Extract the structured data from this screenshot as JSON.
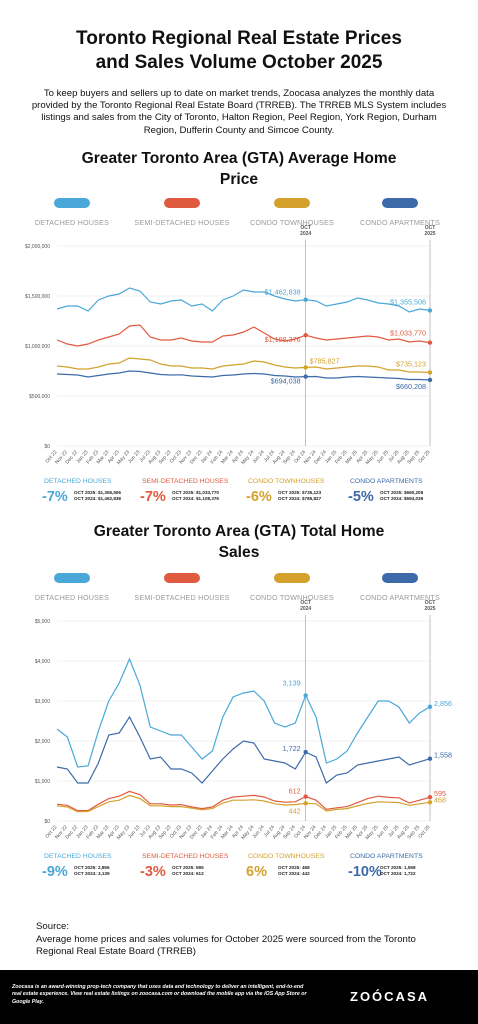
{
  "title_line1": "Toronto Regional Real Estate Prices",
  "title_line2": "and Sales Volume October 2025",
  "intro": "To keep buyers and sellers up to date on market trends, Zoocasa analyzes the monthly data provided by the Toronto Regional Real Estate Board (TRREB). The TRREB MLS System includes listings and sales from the City of Toronto, Halton Region, Peel Region, York Region, Durham Region, Dufferin County and Simcoe County.",
  "colors": {
    "detached": "#4aa8d8",
    "semi": "#e05a3f",
    "town": "#d3a12c",
    "apt": "#3d6aa8"
  },
  "x_labels": [
    "Oct 22",
    "Nov 22",
    "Dec 22",
    "Jan 23",
    "Feb 23",
    "Mar 23",
    "Apr 23",
    "May 23",
    "Jun 23",
    "Jul 23",
    "Aug 23",
    "Sep 23",
    "Oct 23",
    "Nov 23",
    "Dec 23",
    "Jan 24",
    "Feb 24",
    "Mar 24",
    "Apr 24",
    "May 24",
    "Jun 24",
    "Jul 24",
    "Aug 24",
    "Sep 24",
    "Oct 24",
    "Nov 24",
    "Dec 24",
    "Jan 25",
    "Feb 25",
    "Mar 25",
    "Apr 25",
    "May 25",
    "Jun 25",
    "Jul 25",
    "Aug 25",
    "Sep 25",
    "Oct 25"
  ],
  "marker_labels": [
    "OCT\n2024",
    "OCT\n2025"
  ],
  "chart_data": [
    {
      "type": "line",
      "title_line1": "Greater Toronto Area (GTA) Average Home",
      "title_line2": "Price",
      "legend": [
        "DETACHED HOUSES",
        "SEMI-DETACHED HOUSES",
        "CONDO TOWNHOUSES",
        "CONDO APARTMENTS"
      ],
      "y_ticks": [
        "$0",
        "$500,000",
        "$1,000,000",
        "$1,500,000",
        "$2,000,000"
      ],
      "ylim": [
        0,
        2000000
      ],
      "series": [
        {
          "key": "detached",
          "values": [
            1370000,
            1400000,
            1400000,
            1350000,
            1460000,
            1500000,
            1520000,
            1580000,
            1550000,
            1440000,
            1420000,
            1450000,
            1460000,
            1400000,
            1420000,
            1350000,
            1460000,
            1500000,
            1560000,
            1540000,
            1540000,
            1500000,
            1470000,
            1450000,
            1462838,
            1450000,
            1400000,
            1420000,
            1440000,
            1480000,
            1460000,
            1430000,
            1420000,
            1400000,
            1340000,
            1370000,
            1355506
          ]
        },
        {
          "key": "semi",
          "values": [
            1060000,
            1020000,
            1000000,
            1020000,
            1060000,
            1090000,
            1120000,
            1200000,
            1210000,
            1090000,
            1060000,
            1060000,
            1080000,
            1050000,
            1040000,
            1040000,
            1100000,
            1110000,
            1140000,
            1190000,
            1130000,
            1070000,
            1050000,
            1070000,
            1108376,
            1080000,
            1060000,
            1070000,
            1080000,
            1090000,
            1100000,
            1090000,
            1060000,
            1070000,
            1040000,
            1050000,
            1033770
          ]
        },
        {
          "key": "town",
          "values": [
            800000,
            790000,
            770000,
            770000,
            790000,
            820000,
            830000,
            880000,
            870000,
            860000,
            820000,
            800000,
            800000,
            780000,
            780000,
            770000,
            800000,
            810000,
            820000,
            850000,
            840000,
            810000,
            790000,
            780000,
            785827,
            790000,
            770000,
            780000,
            790000,
            800000,
            800000,
            790000,
            760000,
            760000,
            740000,
            740000,
            735123
          ]
        },
        {
          "key": "apt",
          "values": [
            720000,
            715000,
            710000,
            690000,
            705000,
            720000,
            730000,
            750000,
            745000,
            730000,
            715000,
            710000,
            712000,
            700000,
            695000,
            690000,
            705000,
            710000,
            720000,
            725000,
            720000,
            705000,
            700000,
            690000,
            694038,
            695000,
            680000,
            680000,
            690000,
            695000,
            690000,
            685000,
            680000,
            675000,
            665000,
            665000,
            660208
          ]
        }
      ],
      "labels_2024": [
        "$1,462,838",
        "$1,108,376",
        "$785,827",
        "$694,038"
      ],
      "labels_2025": [
        "$1,355,506",
        "$1,033,770",
        "$735,123",
        "$660,208"
      ],
      "summary": [
        {
          "name": "DETACHED HOUSES",
          "pct": "-7%",
          "l1": "OCT 2025: $1,355,506",
          "l2": "OCT 2024: $1,462,838"
        },
        {
          "name": "SEMI-DETACHED HOUSES",
          "pct": "-7%",
          "l1": "OCT 2025: $1,033,770",
          "l2": "OCT 2024: $1,108,376"
        },
        {
          "name": "CONDO TOWNHOUSES",
          "pct": "-6%",
          "l1": "OCT 2025: $735,123",
          "l2": "OCT 2024: $785,827"
        },
        {
          "name": "CONDO APARTMENTS",
          "pct": "-5%",
          "l1": "OCT 2025: $660,208",
          "l2": "OCT 2024: $694,038"
        }
      ]
    },
    {
      "type": "line",
      "title_line1": "Greater Toronto Area (GTA) Total Home",
      "title_line2": "Sales",
      "legend": [
        "DETACHED HOUSES",
        "SEMI-DETACHED HOUSES",
        "CONDO TOWNHOUSES",
        "CONDO APARTMENTS"
      ],
      "y_ticks": [
        "$0",
        "$1,000",
        "$2,000",
        "$3,000",
        "$4,000",
        "$5,000"
      ],
      "ylim": [
        0,
        5000
      ],
      "series": [
        {
          "key": "detached",
          "values": [
            2300,
            2100,
            1350,
            1380,
            2250,
            3000,
            3450,
            4050,
            3400,
            2350,
            2250,
            2150,
            2150,
            1850,
            1550,
            1750,
            2600,
            3100,
            3200,
            3250,
            3000,
            2450,
            2350,
            2450,
            3139,
            2600,
            1450,
            1550,
            1750,
            2200,
            2600,
            3000,
            3000,
            2850,
            2450,
            2700,
            2856
          ]
        },
        {
          "key": "semi",
          "values": [
            420,
            390,
            260,
            260,
            420,
            560,
            620,
            740,
            660,
            430,
            430,
            400,
            410,
            350,
            310,
            350,
            520,
            600,
            620,
            640,
            600,
            500,
            470,
            480,
            612,
            520,
            290,
            330,
            360,
            460,
            560,
            620,
            590,
            580,
            450,
            520,
            595
          ]
        },
        {
          "key": "town",
          "values": [
            380,
            350,
            230,
            240,
            360,
            480,
            520,
            640,
            560,
            380,
            380,
            360,
            360,
            320,
            280,
            310,
            450,
            520,
            520,
            530,
            500,
            430,
            400,
            410,
            442,
            430,
            250,
            290,
            310,
            380,
            440,
            480,
            470,
            460,
            390,
            430,
            468
          ]
        },
        {
          "key": "apt",
          "values": [
            1350,
            1300,
            950,
            950,
            1450,
            2150,
            2200,
            2600,
            2100,
            1550,
            1600,
            1300,
            1300,
            1200,
            950,
            1250,
            1550,
            1800,
            2000,
            1950,
            1550,
            1500,
            1450,
            1300,
            1722,
            1600,
            950,
            1150,
            1200,
            1400,
            1450,
            1500,
            1550,
            1600,
            1400,
            1480,
            1558
          ]
        }
      ],
      "labels_2024": [
        "3,139",
        "612",
        "442",
        "1,722"
      ],
      "labels_2025": [
        "2,856",
        "595",
        "468",
        "1,558"
      ],
      "summary": [
        {
          "name": "DETACHED HOUSES",
          "pct": "-9%",
          "l1": "OCT 2025: 2,856",
          "l2": "OCT 2024: 3,139"
        },
        {
          "name": "SEMI-DETACHED HOUSES",
          "pct": "-3%",
          "l1": "OCT 2025: 595",
          "l2": "OCT 2024: 612"
        },
        {
          "name": "CONDO TOWNHOUSES",
          "pct": "6%",
          "l1": "OCT 2025: 468",
          "l2": "OCT 2024: 442"
        },
        {
          "name": "CONDO APARTMENTS",
          "pct": "-10%",
          "l1": "OCT 2025: 1,558",
          "l2": "OCT 2024: 1,722"
        }
      ]
    }
  ],
  "source_title": "Source:",
  "source_text": "Average home prices and sales volumes for October 2025 were sourced from the Toronto Regional Real Estate Board (TRREB)",
  "footer_text": "Zoocasa is an award-winning prop-tech company that uses data and technology to deliver an intelligent, end-to-end real estate experience. View real estate listings on zoocasa.com or download the mobile app via the iOS App Store or Google Play.",
  "logo": "ZOÓCASA"
}
